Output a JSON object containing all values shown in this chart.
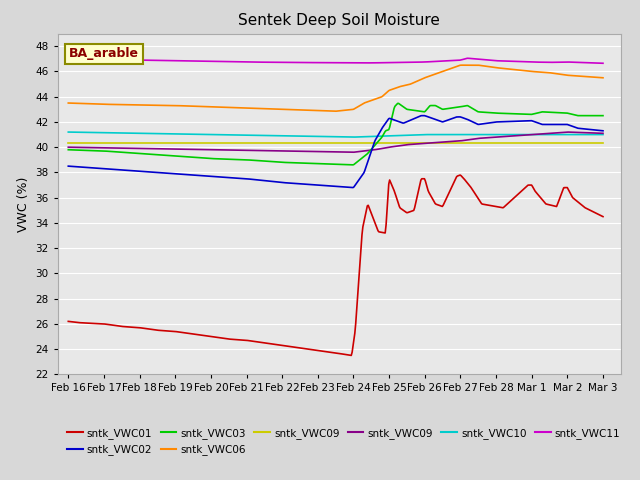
{
  "title": "Sentek Deep Soil Moisture",
  "ylabel": "VWC (%)",
  "ylim": [
    22,
    49
  ],
  "yticks": [
    22,
    24,
    26,
    28,
    30,
    32,
    34,
    36,
    38,
    40,
    42,
    44,
    46,
    48
  ],
  "annotation": "BA_arable",
  "fig_bg": "#d8d8d8",
  "plot_bg": "#e8e8e8",
  "grid_color": "#ffffff",
  "series": {
    "sntk_VWC01": {
      "color": "#cc0000",
      "label": "sntk_VWC01"
    },
    "sntk_VWC02": {
      "color": "#0000cc",
      "label": "sntk_VWC02"
    },
    "sntk_VWC03": {
      "color": "#00cc00",
      "label": "sntk_VWC03"
    },
    "sntk_VWC06": {
      "color": "#ff8800",
      "label": "sntk_VWC06"
    },
    "sntk_VWC09y": {
      "color": "#cccc00",
      "label": "sntk_VWC09"
    },
    "sntk_VWC09p": {
      "color": "#880088",
      "label": "sntk_VWC09"
    },
    "sntk_VWC10": {
      "color": "#00cccc",
      "label": "sntk_VWC10"
    },
    "sntk_VWC11": {
      "color": "#cc00cc",
      "label": "sntk_VWC11"
    }
  },
  "tick_labels": [
    "Feb 16",
    "Feb 17",
    "Feb 18",
    "Feb 19",
    "Feb 20",
    "Feb 21",
    "Feb 22",
    "Feb 23",
    "Feb 24",
    "Feb 25",
    "Feb 26",
    "Feb 27",
    "Feb 28",
    "Mar 1",
    "Mar 2",
    "Mar 3"
  ]
}
